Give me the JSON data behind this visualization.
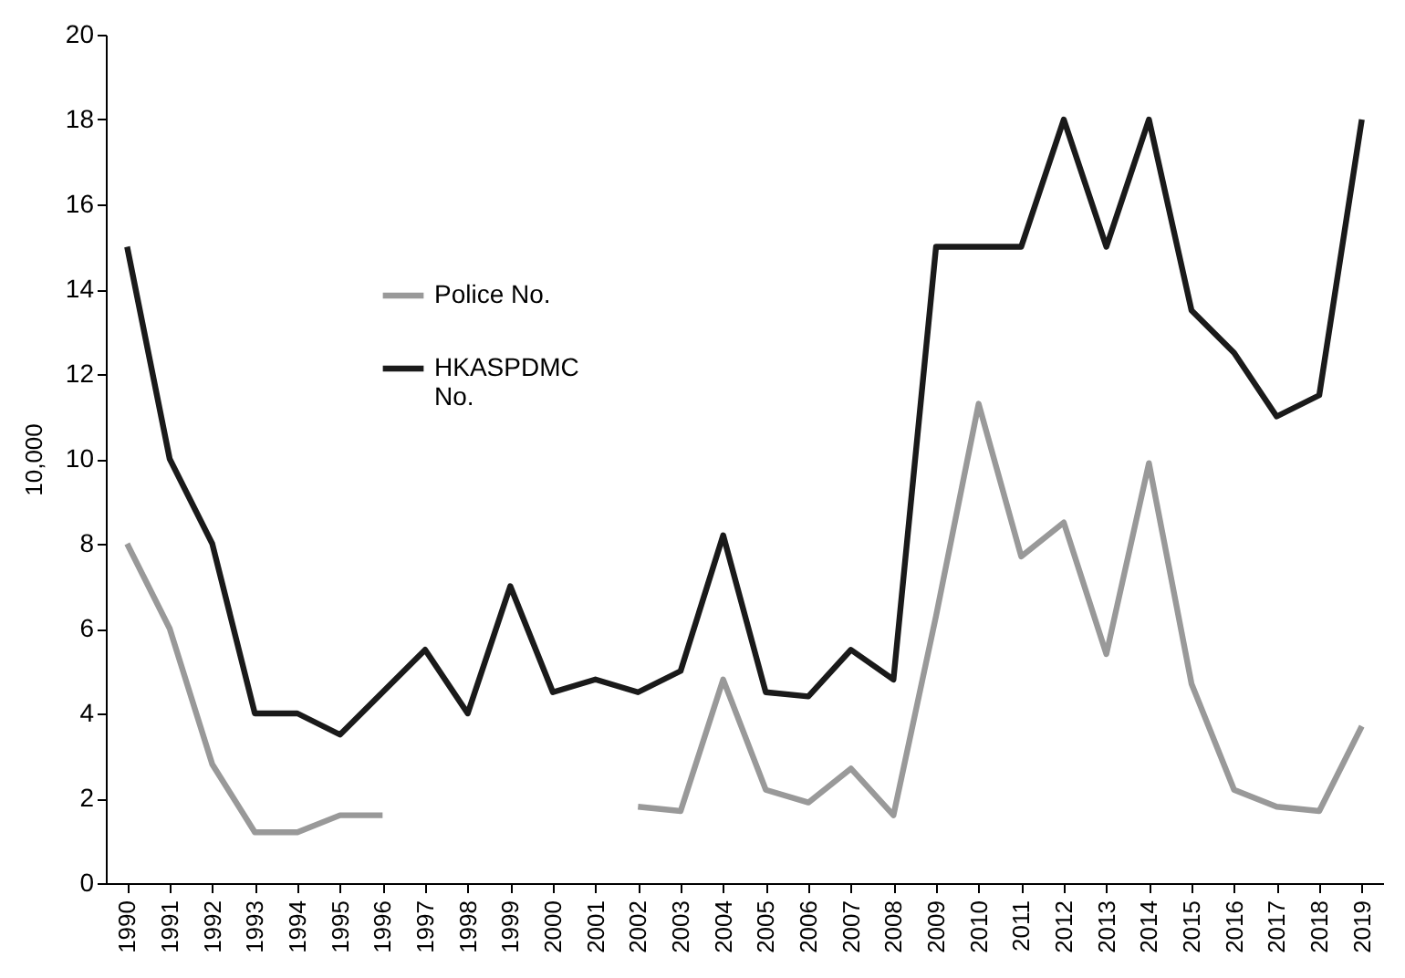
{
  "chart_data": {
    "type": "line",
    "ylabel": "10,000",
    "categories": [
      "1990",
      "1991",
      "1992",
      "1993",
      "1994",
      "1995",
      "1996",
      "1997",
      "1998",
      "1999",
      "2000",
      "2001",
      "2002",
      "2003",
      "2004",
      "2005",
      "2006",
      "2007",
      "2008",
      "2009",
      "2010",
      "2011",
      "2012",
      "2013",
      "2014",
      "2015",
      "2016",
      "2017",
      "2018",
      "2019"
    ],
    "series": [
      {
        "name": "Police No.",
        "color": "#999999",
        "values": [
          8,
          6,
          2.8,
          1.2,
          1.2,
          1.6,
          1.6,
          null,
          null,
          null,
          null,
          null,
          1.8,
          1.7,
          4.8,
          2.2,
          1.9,
          2.7,
          1.6,
          6.3,
          11.3,
          7.7,
          8.5,
          5.4,
          9.9,
          4.7,
          2.2,
          1.8,
          1.7,
          3.7
        ]
      },
      {
        "name": "HKASPDMC No.",
        "color": "#1a1a1a",
        "values": [
          15,
          10,
          8,
          4,
          4,
          3.5,
          4.5,
          5.5,
          4,
          7,
          4.5,
          4.8,
          4.5,
          5,
          8.2,
          4.5,
          4.4,
          5.5,
          4.8,
          15,
          15,
          15,
          18,
          15,
          18,
          13.5,
          12.5,
          11,
          11.5,
          18
        ]
      }
    ],
    "ylim": [
      0,
      20
    ],
    "yticks": [
      0,
      2,
      4,
      6,
      8,
      10,
      12,
      14,
      16,
      18,
      20
    ],
    "grid": false,
    "legend": "top left"
  }
}
